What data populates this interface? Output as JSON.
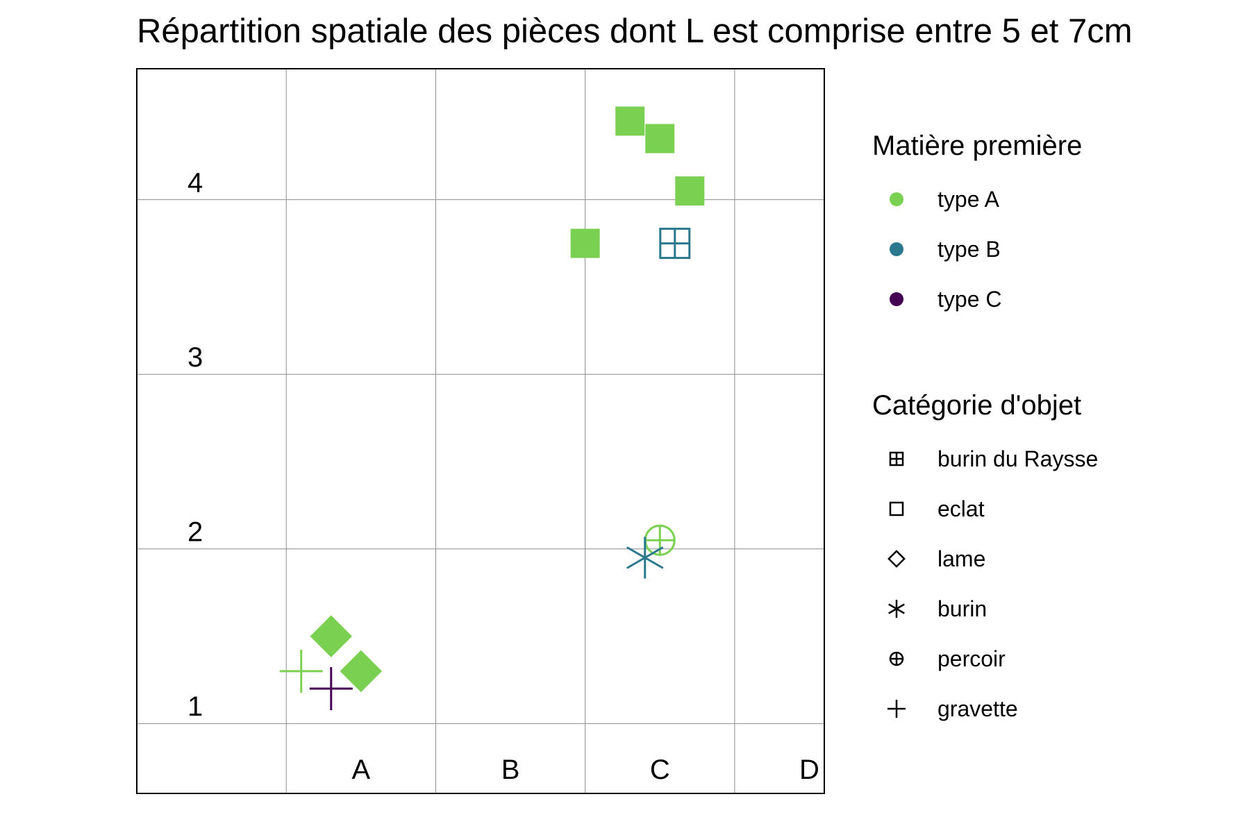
{
  "chart_data": {
    "type": "scatter",
    "title": "Répartition spatiale des pièces dont L est comprise entre 5 et 7cm",
    "xlabel": "",
    "ylabel": "",
    "x_categories": [
      "A",
      "B",
      "C",
      "D"
    ],
    "y_categories": [
      "1",
      "2",
      "3",
      "4"
    ],
    "xlim": [
      0,
      4.6
    ],
    "ylim": [
      0.6,
      4.75
    ],
    "grid": true,
    "legend_position": "right",
    "color_legend": {
      "title": "Matière première",
      "entries": [
        {
          "label": "type A",
          "color": "#7AD151"
        },
        {
          "label": "type B",
          "color": "#2A788E"
        },
        {
          "label": "type C",
          "color": "#440154"
        }
      ]
    },
    "shape_legend": {
      "title": "Catégorie d'objet",
      "entries": [
        {
          "label": "burin du Raysse",
          "shape": "square-plus"
        },
        {
          "label": "eclat",
          "shape": "square"
        },
        {
          "label": "lame",
          "shape": "diamond"
        },
        {
          "label": "burin",
          "shape": "asterisk"
        },
        {
          "label": "percoir",
          "shape": "circle-plus"
        },
        {
          "label": "gravette",
          "shape": "plus"
        }
      ]
    },
    "points": [
      {
        "x": 3.3,
        "y": 4.45,
        "material": "type A",
        "category": "eclat"
      },
      {
        "x": 3.5,
        "y": 4.35,
        "material": "type A",
        "category": "eclat"
      },
      {
        "x": 3.7,
        "y": 4.05,
        "material": "type A",
        "category": "eclat"
      },
      {
        "x": 3.0,
        "y": 3.75,
        "material": "type A",
        "category": "eclat"
      },
      {
        "x": 3.6,
        "y": 3.75,
        "material": "type B",
        "category": "burin du Raysse"
      },
      {
        "x": 3.5,
        "y": 2.05,
        "material": "type A",
        "category": "percoir"
      },
      {
        "x": 3.4,
        "y": 1.95,
        "material": "type B",
        "category": "burin"
      },
      {
        "x": 1.3,
        "y": 1.5,
        "material": "type A",
        "category": "lame"
      },
      {
        "x": 1.5,
        "y": 1.3,
        "material": "type A",
        "category": "lame"
      },
      {
        "x": 1.1,
        "y": 1.3,
        "material": "type A",
        "category": "gravette"
      },
      {
        "x": 1.3,
        "y": 1.2,
        "material": "type C",
        "category": "gravette"
      }
    ]
  }
}
